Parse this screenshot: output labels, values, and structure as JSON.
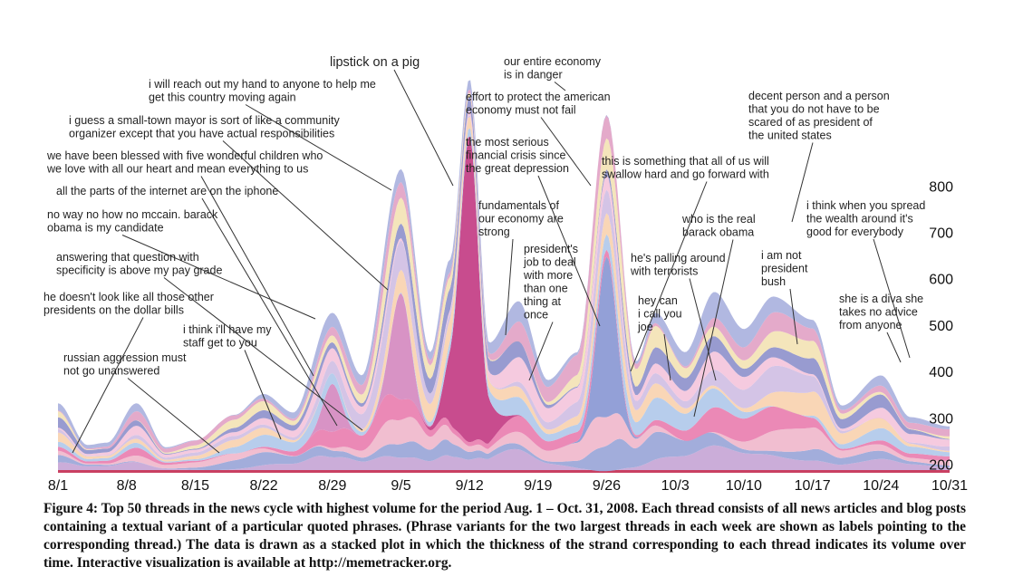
{
  "chart_data": {
    "type": "area",
    "stacked": true,
    "x_ticks": [
      "8/1",
      "8/8",
      "8/15",
      "8/22",
      "8/29",
      "9/5",
      "9/12",
      "9/19",
      "9/26",
      "10/3",
      "10/10",
      "10/17",
      "10/24",
      "10/31"
    ],
    "y_ticks": [
      200,
      300,
      400,
      500,
      600,
      700,
      800
    ],
    "ylim": [
      0,
      850
    ],
    "total_volume": [
      [
        "2008-08-01",
        150
      ],
      [
        "2008-08-04",
        60
      ],
      [
        "2008-08-06",
        65
      ],
      [
        "2008-08-09",
        150
      ],
      [
        "2008-08-12",
        55
      ],
      [
        "2008-08-15",
        70
      ],
      [
        "2008-08-19",
        125
      ],
      [
        "2008-08-22",
        170
      ],
      [
        "2008-08-25",
        130
      ],
      [
        "2008-08-29",
        345
      ],
      [
        "2008-09-01",
        210
      ],
      [
        "2008-09-05",
        655
      ],
      [
        "2008-09-08",
        260
      ],
      [
        "2008-09-10",
        460
      ],
      [
        "2008-09-12",
        850
      ],
      [
        "2008-09-14",
        280
      ],
      [
        "2008-09-17",
        370
      ],
      [
        "2008-09-20",
        200
      ],
      [
        "2008-09-23",
        260
      ],
      [
        "2008-09-26",
        770
      ],
      [
        "2008-09-29",
        240
      ],
      [
        "2008-10-01",
        345
      ],
      [
        "2008-10-04",
        260
      ],
      [
        "2008-10-07",
        390
      ],
      [
        "2008-10-10",
        310
      ],
      [
        "2008-10-13",
        380
      ],
      [
        "2008-10-17",
        330
      ],
      [
        "2008-10-20",
        145
      ],
      [
        "2008-10-24",
        210
      ],
      [
        "2008-10-27",
        120
      ],
      [
        "2008-10-31",
        100
      ]
    ],
    "annotations": [
      {
        "lines": [
          "lipstick on a pig"
        ],
        "date": "2008-09-12"
      },
      {
        "lines": [
          "our entire economy",
          "is in danger"
        ],
        "date": "2008-09-25"
      },
      {
        "lines": [
          "i will reach out my hand to anyone to help me",
          "get this country moving again"
        ],
        "date": "2008-09-05"
      },
      {
        "lines": [
          "effort to protect the american",
          "economy must not fail"
        ],
        "date": "2008-09-27"
      },
      {
        "lines": [
          "decent person and a person",
          "that you do not have to be",
          "scared of as president of",
          "the united states"
        ],
        "date": "2008-10-15"
      },
      {
        "lines": [
          "i guess a small-town mayor is sort of like a community",
          "organizer except that you have actual responsibilities"
        ],
        "date": "2008-09-04"
      },
      {
        "lines": [
          "the most serious",
          "financial crisis since",
          "the great depression"
        ],
        "date": "2008-09-26"
      },
      {
        "lines": [
          "this is something that all of us will",
          "swallow hard and go forward with"
        ],
        "date": "2008-10-01"
      },
      {
        "lines": [
          "we have been blessed with five wonderful children who",
          "we love with all our heart and mean everything to us"
        ],
        "date": "2008-09-03"
      },
      {
        "lines": [
          "all the parts of the internet are on the iphone"
        ],
        "date": "2008-08-29"
      },
      {
        "lines": [
          "fundamentals of",
          "our economy are",
          "strong"
        ],
        "date": "2008-09-16"
      },
      {
        "lines": [
          "i think when you spread",
          "the wealth around it's",
          "good for everybody"
        ],
        "date": "2008-10-17"
      },
      {
        "lines": [
          "no way no how no mccain. barack",
          "obama is my candidate"
        ],
        "date": "2008-08-29"
      },
      {
        "lines": [
          "who is the real",
          "barack obama"
        ],
        "date": "2008-10-07"
      },
      {
        "lines": [
          "president's",
          "job to deal",
          "with more",
          "than one",
          "thing at",
          "once"
        ],
        "date": "2008-09-17"
      },
      {
        "lines": [
          "answering that question with",
          "specificity is above my pay grade"
        ],
        "date": "2008-09-04"
      },
      {
        "lines": [
          "he's palling around",
          "with terrorists"
        ],
        "date": "2008-10-08"
      },
      {
        "lines": [
          "i am not",
          "president",
          "bush"
        ],
        "date": "2008-10-16"
      },
      {
        "lines": [
          "he doesn't look like all those other",
          "presidents on the dollar bills"
        ],
        "date": "2008-08-01"
      },
      {
        "lines": [
          "hey can",
          "i call you",
          "joe"
        ],
        "date": "2008-10-04"
      },
      {
        "lines": [
          "she is a diva she",
          "takes no advice",
          "from anyone"
        ],
        "date": "2008-10-25"
      },
      {
        "lines": [
          "i think i'll have my",
          "staff get to you"
        ],
        "date": "2008-08-26"
      },
      {
        "lines": [
          "russian aggression must",
          "not go unanswered"
        ],
        "date": "2008-08-15"
      }
    ],
    "palette": [
      "#c7a6d6",
      "#9aa6d8",
      "#f0b8cc",
      "#e97fb0",
      "#b1c9ea",
      "#f8d2b0",
      "#d0bfe4",
      "#f4c6dc",
      "#8f93cc",
      "#f3e3b5",
      "#e2a3c6",
      "#aab2de"
    ],
    "peak_color": "#c33d84",
    "peak_edge_color": "#8a2860",
    "baseline_line_color": "#c43055"
  },
  "caption": "Figure 4: Top 50 threads in the news cycle with highest volume for the period Aug. 1 – Oct. 31, 2008. Each thread consists of all news articles and blog posts containing a textual variant of a particular quoted phrases. (Phrase variants for the two largest threads in each week are shown as labels pointing to the corresponding thread.) The data is drawn as a stacked plot in which the thickness of the strand corresponding to each thread indicates its volume over time. Interactive visualization is available at http://memetracker.org."
}
